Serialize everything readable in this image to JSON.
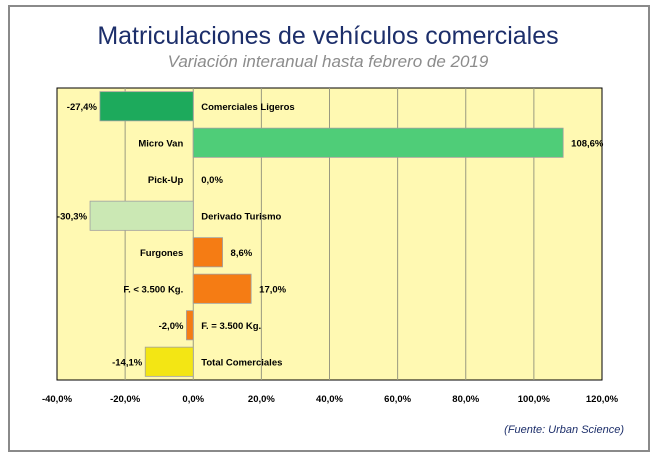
{
  "chart_data": {
    "type": "bar",
    "orientation": "horizontal",
    "title": "Matriculaciones de vehículos comerciales",
    "subtitle": "Variación interanual hasta febrero de 2019",
    "source": "(Fuente: Urban Science)",
    "categories": [
      "Comerciales Ligeros",
      "Micro Van",
      "Pick-Up",
      "Derivado Turismo",
      "Furgones",
      "F. < 3.500 Kg.",
      "F. = 3.500 Kg.",
      "Total Comerciales"
    ],
    "values": [
      -27.4,
      108.6,
      0.0,
      -30.3,
      8.6,
      17.0,
      -2.0,
      -14.1
    ],
    "value_labels": [
      "-27,4%",
      "108,6%",
      "0,0%",
      "-30,3%",
      "8,6%",
      "17,0%",
      "-2,0%",
      "-14,1%"
    ],
    "colors": [
      "#1daa5c",
      "#4fcd78",
      "#4fcd78",
      "#cbe8b4",
      "#f57c14",
      "#f57c14",
      "#f57c14",
      "#f3e614"
    ],
    "xlim": [
      -40,
      120
    ],
    "xticks": [
      -40,
      -20,
      0,
      20,
      40,
      60,
      80,
      100,
      120
    ],
    "xtick_labels": [
      "-40,0%",
      "-20,0%",
      "0,0%",
      "20,0%",
      "40,0%",
      "60,0%",
      "80,0%",
      "100,0%",
      "120,0%"
    ],
    "grid": true,
    "background": "#fff9b2"
  }
}
